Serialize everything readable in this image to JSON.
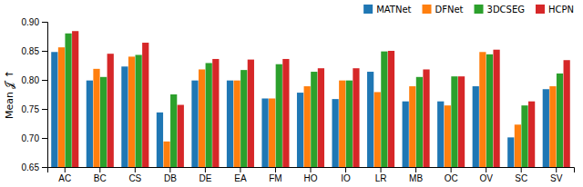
{
  "chart_data": {
    "type": "bar",
    "ylabel": "Mean 𝒥 ↑",
    "categories": [
      "AC",
      "BC",
      "CS",
      "DB",
      "DE",
      "EA",
      "FM",
      "HO",
      "IO",
      "LR",
      "MB",
      "OC",
      "OV",
      "SC",
      "SV"
    ],
    "series": [
      {
        "name": "MATNet",
        "values": [
          0.848,
          0.799,
          0.823,
          0.744,
          0.799,
          0.799,
          0.768,
          0.778,
          0.767,
          0.814,
          0.763,
          0.763,
          0.789,
          0.701,
          0.784
        ]
      },
      {
        "name": "DFNet",
        "values": [
          0.856,
          0.819,
          0.84,
          0.694,
          0.818,
          0.799,
          0.768,
          0.789,
          0.799,
          0.779,
          0.789,
          0.756,
          0.848,
          0.723,
          0.789
        ]
      },
      {
        "name": "3DCSEG",
        "values": [
          0.88,
          0.805,
          0.843,
          0.775,
          0.829,
          0.817,
          0.827,
          0.814,
          0.799,
          0.849,
          0.805,
          0.806,
          0.844,
          0.756,
          0.811
        ]
      },
      {
        "name": "HCPN",
        "values": [
          0.884,
          0.845,
          0.864,
          0.757,
          0.836,
          0.835,
          0.836,
          0.82,
          0.82,
          0.85,
          0.818,
          0.806,
          0.852,
          0.763,
          0.834
        ]
      }
    ],
    "ylim": [
      0.65,
      0.9
    ],
    "yticks": [
      0.65,
      {
        "value": 0.7,
        "label": "0.70"
      },
      0.75,
      {
        "value": 0.8,
        "label": "0.80"
      },
      0.85,
      {
        "value": 0.9,
        "label": "0.90"
      }
    ],
    "grid": false,
    "legend": "upper right"
  }
}
